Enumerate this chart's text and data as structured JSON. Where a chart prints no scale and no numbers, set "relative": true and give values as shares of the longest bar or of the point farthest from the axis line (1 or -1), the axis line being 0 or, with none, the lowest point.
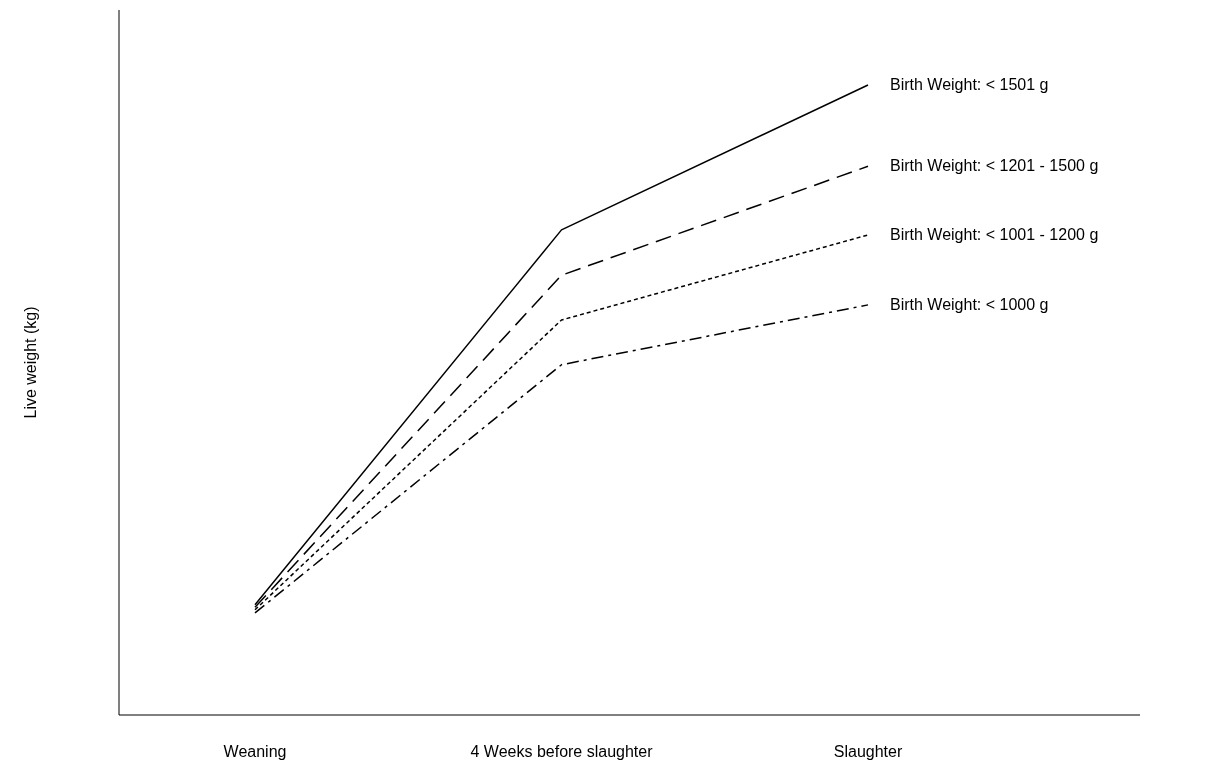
{
  "chart_data": {
    "type": "line",
    "ylabel": "Live weight (kg)",
    "categories": [
      "Weaning",
      "4 Weeks before slaughter",
      "Slaughter"
    ],
    "relative": true,
    "series": [
      {
        "name": "Birth Weight: < 1501 g",
        "color": "#000000",
        "line_style": "solid",
        "values": [
          0.175,
          0.77,
          1
        ]
      },
      {
        "name": "Birth Weight: < 1201 - 1500 g",
        "color": "#000000",
        "line_style": "dashed",
        "values": [
          0.171,
          0.698,
          0.871
        ]
      },
      {
        "name": "Birth Weight: < 1001 - 1200 g",
        "color": "#000000",
        "line_style": "dotted",
        "values": [
          0.167,
          0.627,
          0.762
        ]
      },
      {
        "name": "Birth Weight: < 1000 g",
        "color": "#000000",
        "line_style": "dashdot",
        "values": [
          0.162,
          0.556,
          0.651
        ]
      }
    ]
  }
}
